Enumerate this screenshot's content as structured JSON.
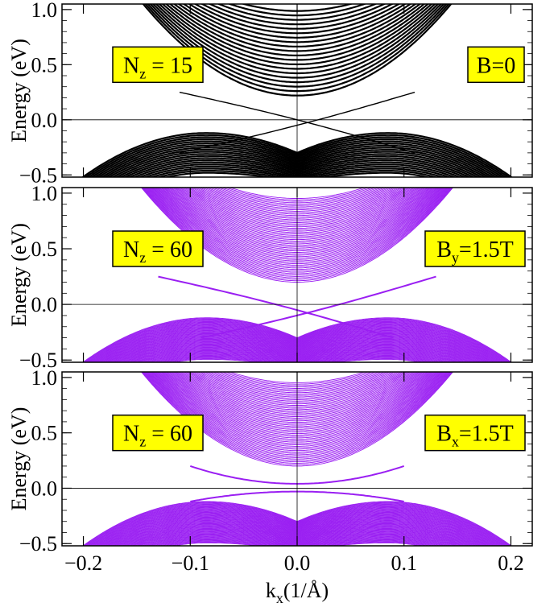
{
  "chart_data": [
    {
      "type": "line",
      "ylabel": "Energy (eV)",
      "xlim": [
        -0.22,
        0.22
      ],
      "ylim": [
        -0.52,
        1.05
      ],
      "yticks": [
        "1.0",
        "0.5",
        "0.0",
        "−0.5"
      ],
      "ytick_values": [
        1.0,
        0.5,
        0.0,
        -0.5
      ],
      "color": "#000000",
      "label_left": {
        "main": "N",
        "sub": "z",
        "rest": " = 15"
      },
      "label_right": {
        "main": "B=0",
        "sub": "",
        "rest": ""
      },
      "bands": {
        "n_conduction": 20,
        "n_valence": 20,
        "conduction_min": 0.22,
        "conduction_curvature": 40,
        "valence_top_k": [
          -0.085,
          0.085
        ],
        "valence_top_e": -0.12,
        "surface_states": [
          {
            "from": [
              -0.11,
              0.25
            ],
            "to": [
              0.11,
              -0.3
            ]
          },
          {
            "from": [
              -0.11,
              -0.3
            ],
            "to": [
              0.11,
              0.25
            ]
          }
        ]
      }
    },
    {
      "type": "line",
      "ylabel": "Energy (eV)",
      "xlim": [
        -0.22,
        0.22
      ],
      "ylim": [
        -0.52,
        1.05
      ],
      "yticks": [
        "1.0",
        "0.5",
        "0.0",
        "−0.5"
      ],
      "ytick_values": [
        1.0,
        0.5,
        0.0,
        -0.5
      ],
      "color": "#9a1ff2",
      "label_left": {
        "main": "N",
        "sub": "z",
        "rest": " = 60"
      },
      "label_right": {
        "main": "B",
        "sub": "y",
        "rest": "=1.5T"
      },
      "bands": {
        "n_conduction": 60,
        "n_valence": 60,
        "conduction_min": 0.2,
        "conduction_curvature": 40,
        "valence_top_k": [
          -0.085,
          0.085
        ],
        "valence_top_e": -0.12,
        "surface_states": [
          {
            "from": [
              -0.13,
              0.25
            ],
            "to": [
              0.09,
              -0.3
            ]
          },
          {
            "from": [
              -0.09,
              -0.3
            ],
            "to": [
              0.13,
              0.25
            ]
          }
        ]
      }
    },
    {
      "type": "line",
      "ylabel": "Energy (eV)",
      "xlabel": "k_x(1/Å)",
      "xlim": [
        -0.22,
        0.22
      ],
      "ylim": [
        -0.52,
        1.05
      ],
      "xticks": [
        "−0.2",
        "−0.1",
        "0.0",
        "0.1",
        "0.2"
      ],
      "xtick_values": [
        -0.2,
        -0.1,
        0.0,
        0.1,
        0.2
      ],
      "yticks": [
        "1.0",
        "0.5",
        "0.0",
        "−0.5"
      ],
      "ytick_values": [
        1.0,
        0.5,
        0.0,
        -0.5
      ],
      "color": "#9a1ff2",
      "label_left": {
        "main": "N",
        "sub": "z",
        "rest": " = 60"
      },
      "label_right": {
        "main": "B",
        "sub": "x",
        "rest": "=1.5T"
      },
      "bands": {
        "n_conduction": 60,
        "n_valence": 60,
        "conduction_min": 0.2,
        "conduction_curvature": 40,
        "valence_top_k": [
          -0.085,
          0.085
        ],
        "valence_top_e": -0.12,
        "gap_surface": {
          "upper_min": 0.04,
          "lower_max": -0.03
        }
      }
    }
  ],
  "xlabel": {
    "main": "k",
    "sub": "x",
    "rest": "(1/Å)"
  }
}
